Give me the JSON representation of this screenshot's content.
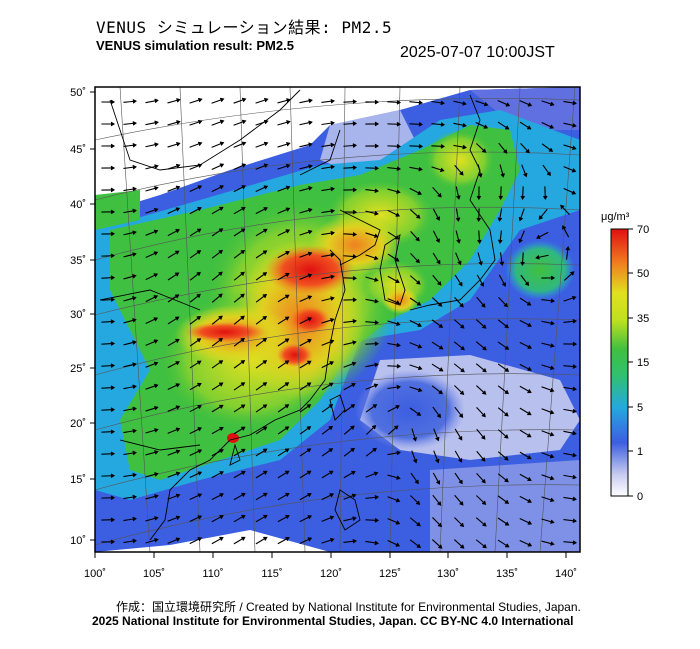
{
  "header": {
    "title_jp": "VENUS シミュレーション結果: PM2.5",
    "title_en": "VENUS simulation result: PM2.5",
    "timestamp": "2025-07-07 10:00JST"
  },
  "map": {
    "lat_ticks": [
      "50˚",
      "45˚",
      "40˚",
      "35˚",
      "30˚",
      "25˚",
      "20˚",
      "15˚",
      "10˚"
    ],
    "lon_ticks": [
      "100˚",
      "105˚",
      "110˚",
      "115˚",
      "120˚",
      "125˚",
      "130˚",
      "135˚",
      "140˚"
    ],
    "colors": {
      "very_low": "#d0d4f0",
      "low": "#3c5ee0",
      "mid_low": "#25a8e0",
      "mid": "#40c040",
      "mid_high": "#e0e020",
      "high": "#f08020",
      "very_high": "#e01010",
      "no_data": "#ffffff"
    }
  },
  "colorbar": {
    "unit": "μg/m³",
    "labels": [
      "70",
      "50",
      "35",
      "15",
      "5",
      "1",
      "0"
    ]
  },
  "footer": {
    "credit": "作成：国立環境研究所 / Created by National Institute for Environmental Studies, Japan.",
    "copyright": "2025 National Institute for Environmental Studies, Japan. CC BY-NC 4.0 International"
  }
}
